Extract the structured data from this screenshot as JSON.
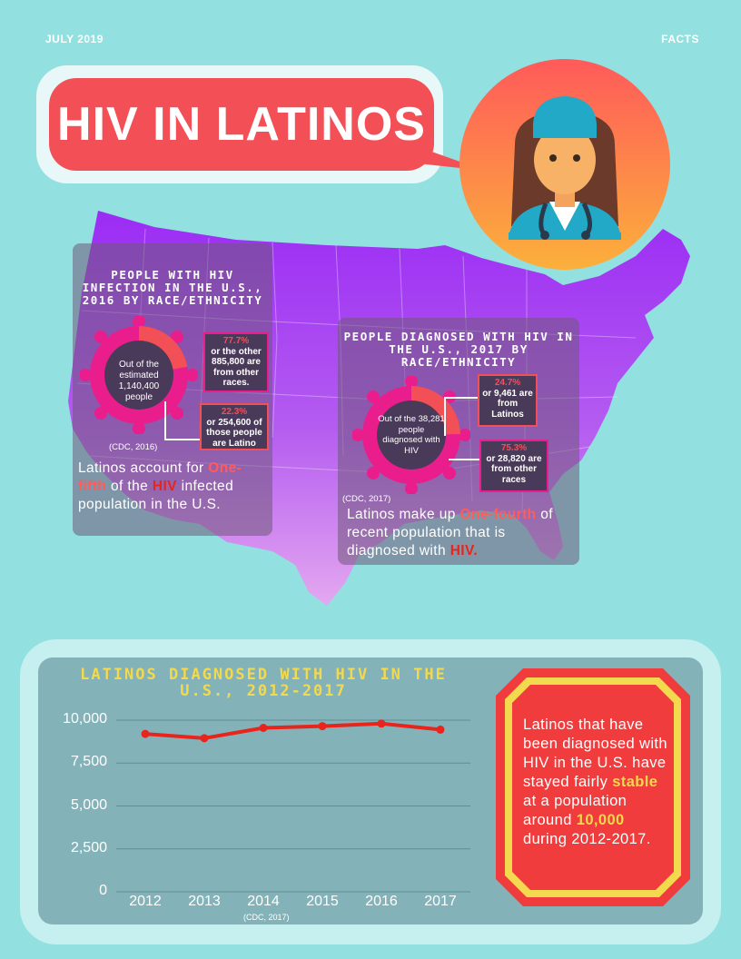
{
  "header": {
    "date": "JULY 2019",
    "section": "FACTS"
  },
  "title": "HIV IN LATINOS",
  "colors": {
    "background": "#93e0e1",
    "accent_red": "#f25056",
    "accent_pink": "#e91e8c",
    "yellow": "#f3d94e",
    "map_purple": "#9b2cf4"
  },
  "icons": {
    "avatar": "doctor-avatar-icon",
    "virus": "virus-icon",
    "map": "us-map"
  },
  "panel_2016": {
    "title": "PEOPLE WITH HIV INFECTION IN THE U.S., 2016 BY RACE/ETHNICITY",
    "center": "Out of the estimated 1,140,400 people",
    "box_other": {
      "pct": "77.7%",
      "text": "or the other 885,800 are from other races."
    },
    "box_latino": {
      "pct": "22.3%",
      "text": "or 254,600 of those people are Latino"
    },
    "latino_fraction": 0.223,
    "citation": "(CDC, 2016)",
    "statement": {
      "p1": "Latinos account for ",
      "hl1": "One-fifth",
      "p2": " of the ",
      "hl2": "HIV",
      "p3": " infected population in the U.S."
    }
  },
  "panel_2017": {
    "title": "PEOPLE DIAGNOSED WITH HIV IN THE U.S., 2017 BY RACE/ETHNICITY",
    "center": "Out of the 38,281 people diagnosed with HIV",
    "box_latino": {
      "pct": "24.7%",
      "text": "or 9,461 are from Latinos"
    },
    "box_other": {
      "pct": "75.3%",
      "text": "or 28,820 are from other races"
    },
    "latino_fraction": 0.247,
    "citation": "(CDC, 2017)",
    "statement": {
      "p1": "Latinos make up ",
      "hl1": "One-fourth",
      "p2": " of recent population that is diagnosed with ",
      "hl2": "HIV."
    }
  },
  "chart_data": {
    "type": "line",
    "title": "LATINOS DIAGNOSED WITH HIV IN THE U.S., 2012-2017",
    "x": [
      "2012",
      "2013",
      "2014",
      "2015",
      "2016",
      "2017"
    ],
    "values": [
      9200,
      8950,
      9550,
      9650,
      9800,
      9450
    ],
    "yticks": [
      "10,000",
      "7,500",
      "5,000",
      "2,500",
      "0"
    ],
    "ylim": [
      0,
      10000
    ],
    "grid": true,
    "line_color": "#e8241c",
    "citation": "(CDC, 2017)"
  },
  "side_note": {
    "p1": "Latinos that have been diagnosed with HIV in the U.S. have stayed fairly ",
    "hl1": "stable",
    "p2": " at a population around ",
    "hl2": "10,000",
    "p3": " during 2012-2017."
  }
}
